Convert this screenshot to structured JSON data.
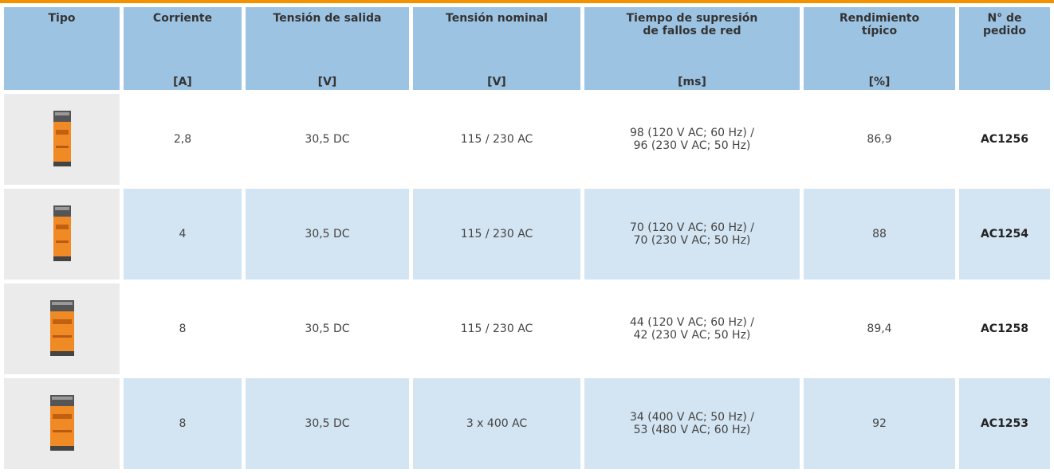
{
  "header": {
    "columns": [
      {
        "title": [
          "Tipo"
        ],
        "unit": null
      },
      {
        "title": [
          "Corriente"
        ],
        "unit": "[A]"
      },
      {
        "title": [
          "Tensión de salida"
        ],
        "unit": "[V]"
      },
      {
        "title": [
          "Tensión nominal"
        ],
        "unit": "[V]"
      },
      {
        "title": [
          "Tiempo de supresión",
          "de fallos de red"
        ],
        "unit": "[ms]"
      },
      {
        "title": [
          "Rendimiento",
          "típico"
        ],
        "unit": "[%]"
      },
      {
        "title": [
          "N° de",
          "pedido"
        ],
        "unit": null
      }
    ]
  },
  "table": {
    "rows": [
      {
        "corriente": "2,8",
        "salida": "30,5 DC",
        "nominal": "115 / 230 AC",
        "tiempo": [
          "98 (120 V AC; 60 Hz) /",
          "96 (230 V AC; 50 Hz)"
        ],
        "rendimiento": "86,9",
        "pedido": "AC1256"
      },
      {
        "corriente": "4",
        "salida": "30,5 DC",
        "nominal": "115 / 230 AC",
        "tiempo": [
          "70 (120 V AC; 60 Hz) /",
          "70 (230 V AC; 50 Hz)"
        ],
        "rendimiento": "88",
        "pedido": "AC1254"
      },
      {
        "corriente": "8",
        "salida": "30,5 DC",
        "nominal": "115 / 230 AC",
        "tiempo": [
          "44 (120 V AC; 60 Hz) /",
          "42 (230 V AC; 50 Hz)"
        ],
        "rendimiento": "89,4",
        "pedido": "AC1258"
      },
      {
        "corriente": "8",
        "salida": "30,5 DC",
        "nominal": "3 x 400 AC",
        "tiempo": [
          "34 (400 V AC; 50 Hz) /",
          "53 (480 V AC; 60 Hz)"
        ],
        "rendimiento": "92",
        "pedido": "AC1253"
      }
    ]
  }
}
